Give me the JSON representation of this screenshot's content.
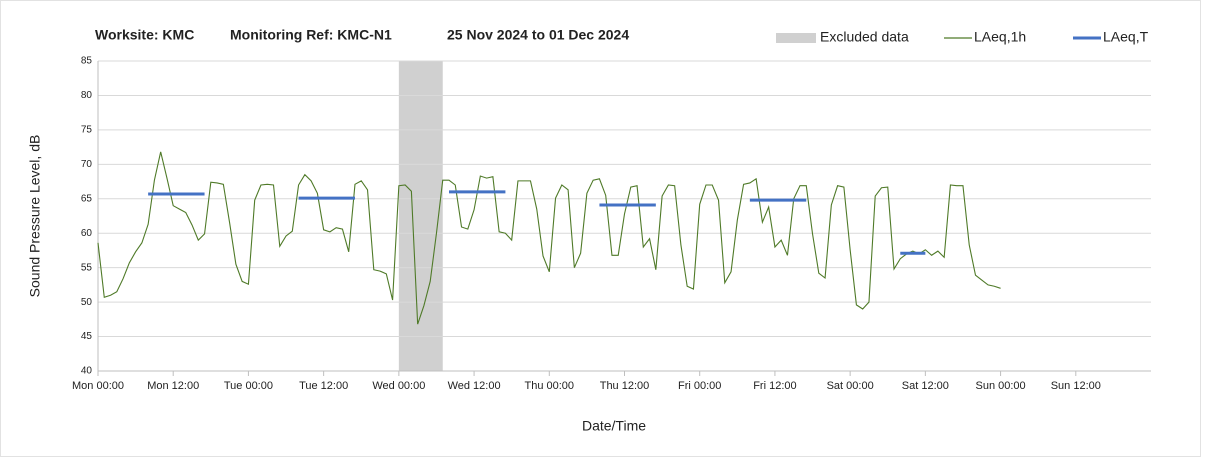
{
  "chart_data": {
    "type": "line",
    "title": [
      "Worksite: KMC",
      "Monitoring Ref: KMC-N1",
      "25 Nov 2024 to 01 Dec 2024"
    ],
    "xlabel": "Date/Time",
    "ylabel": "Sound Pressure Level, dB",
    "xlim": [
      0,
      168
    ],
    "xticks": [
      {
        "value": 0,
        "label": "Mon 00:00"
      },
      {
        "value": 12,
        "label": "Mon 12:00"
      },
      {
        "value": 24,
        "label": "Tue 00:00"
      },
      {
        "value": 36,
        "label": "Tue 12:00"
      },
      {
        "value": 48,
        "label": "Wed 00:00"
      },
      {
        "value": 60,
        "label": "Wed 12:00"
      },
      {
        "value": 72,
        "label": "Thu 00:00"
      },
      {
        "value": 84,
        "label": "Thu 12:00"
      },
      {
        "value": 96,
        "label": "Fri 00:00"
      },
      {
        "value": 108,
        "label": "Fri 12:00"
      },
      {
        "value": 120,
        "label": "Sat 00:00"
      },
      {
        "value": 132,
        "label": "Sat 12:00"
      },
      {
        "value": 144,
        "label": "Sun 00:00"
      },
      {
        "value": 156,
        "label": "Sun 12:00"
      }
    ],
    "ylim": [
      40,
      85
    ],
    "yticks": [
      40,
      45,
      50,
      55,
      60,
      65,
      70,
      75,
      80,
      85
    ],
    "grid": true,
    "excluded": {
      "name": "Excluded data",
      "color": "#d0d0d0",
      "x": [
        48,
        55
      ]
    },
    "series": [
      {
        "name": "LAeq,1h",
        "color": "#4f7a28",
        "x": [
          0,
          1,
          2,
          3,
          4,
          5,
          6,
          7,
          8,
          9,
          10,
          11,
          12,
          13,
          14,
          15,
          16,
          17,
          18,
          19,
          20,
          21,
          22,
          23,
          24,
          25,
          26,
          27,
          28,
          29,
          30,
          31,
          32,
          33,
          34,
          35,
          36,
          37,
          38,
          39,
          40,
          41,
          42,
          43,
          44,
          45,
          46,
          47,
          48,
          49,
          50,
          51,
          52,
          53,
          54,
          55,
          56,
          57,
          58,
          59,
          60,
          61,
          62,
          63,
          64,
          65,
          66,
          67,
          68,
          69,
          70,
          71,
          72,
          73,
          74,
          75,
          76,
          77,
          78,
          79,
          80,
          81,
          82,
          83,
          84,
          85,
          86,
          87,
          88,
          89,
          90,
          91,
          92,
          93,
          94,
          95,
          96,
          97,
          98,
          99,
          100,
          101,
          102,
          103,
          104,
          105,
          106,
          107,
          108,
          109,
          110,
          111,
          112,
          113,
          114,
          115,
          116,
          117,
          118,
          119,
          120,
          121,
          122,
          123,
          124,
          125,
          126,
          127,
          128,
          129,
          130,
          131,
          132,
          133,
          134,
          135,
          136,
          137,
          138,
          139,
          140,
          141,
          142,
          143,
          144
        ],
        "values": [
          58.6,
          50.7,
          51,
          51.5,
          53.4,
          55.7,
          57.3,
          58.6,
          61.3,
          67.7,
          71.8,
          68,
          64,
          63.5,
          63,
          61.2,
          59,
          59.9,
          67.4,
          67.3,
          67.1,
          61.5,
          55.5,
          53,
          52.6,
          64.8,
          67,
          67.1,
          67,
          58.1,
          59.6,
          60.3,
          67,
          68.5,
          67.6,
          65.8,
          60.5,
          60.2,
          60.8,
          60.6,
          57.3,
          67.1,
          67.6,
          66.3,
          54.7,
          54.5,
          54.1,
          50.3,
          66.9,
          67,
          66.1,
          46.8,
          49.5,
          53,
          60,
          67.7,
          67.7,
          67,
          60.9,
          60.6,
          63.4,
          68.3,
          68,
          68.2,
          60.2,
          60,
          59,
          67.6,
          67.6,
          67.6,
          63.5,
          56.7,
          54.4,
          65.1,
          67,
          66.3,
          55,
          57.1,
          65.8,
          67.7,
          67.9,
          65.5,
          56.8,
          56.8,
          62.8,
          66.7,
          66.9,
          58,
          59.2,
          54.7,
          65.4,
          67,
          66.9,
          58.3,
          52.3,
          51.9,
          64.2,
          67,
          67,
          64.8,
          52.8,
          54.4,
          61.9,
          67.1,
          67.3,
          67.9,
          61.6,
          63.8,
          58,
          59,
          56.8,
          65,
          66.9,
          66.9,
          59.9,
          54.2,
          53.5,
          64.1,
          66.9,
          66.7,
          57.6,
          49.6,
          49,
          50,
          65.4,
          66.6,
          66.7,
          54.8,
          56.3,
          57,
          57.4,
          57,
          57.6,
          56.8,
          57.4,
          56.5,
          67,
          66.9,
          66.9,
          58.3,
          53.9,
          53.2,
          52.5,
          52.3,
          52
        ]
      },
      {
        "name": "LAeq,T",
        "color": "#4472c4",
        "x_start": [
          8,
          32,
          56,
          80,
          104,
          128
        ],
        "x_end": [
          17,
          41,
          65,
          89,
          113,
          132
        ],
        "values": [
          65.7,
          65.1,
          66,
          64.1,
          64.8,
          57.1
        ]
      }
    ]
  }
}
